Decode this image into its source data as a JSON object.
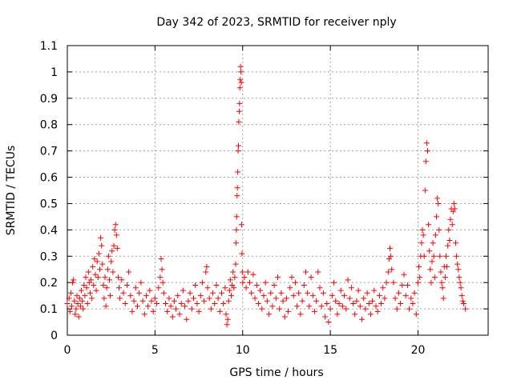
{
  "chart_data": {
    "type": "scatter",
    "title": "Day 342 of 2023, SRMTID for receiver nply",
    "xlabel": "GPS time / hours",
    "ylabel": "SRMTID / TECUs",
    "xlim": [
      0,
      24
    ],
    "ylim": [
      0,
      1.1
    ],
    "xticks": [
      0,
      5,
      10,
      15,
      20
    ],
    "xtick_labels": [
      "0",
      "5",
      "10",
      "15",
      "20"
    ],
    "yticks": [
      0,
      0.1,
      0.2,
      0.3,
      0.4,
      0.5,
      0.6,
      0.7,
      0.8,
      0.9,
      1,
      1.1
    ],
    "ytick_labels": [
      "0",
      "0.1",
      "0.2",
      "0.3",
      "0.4",
      "0.5",
      "0.6",
      "0.7",
      "0.8",
      "0.9",
      "1",
      "1.1"
    ],
    "grid": true,
    "marker": "+",
    "color": "#ff0000",
    "series": [
      {
        "name": "nply",
        "points": [
          [
            0.0,
            0.12
          ],
          [
            0.1,
            0.14
          ],
          [
            0.15,
            0.09
          ],
          [
            0.2,
            0.16
          ],
          [
            0.25,
            0.11
          ],
          [
            0.3,
            0.2
          ],
          [
            0.35,
            0.21
          ],
          [
            0.4,
            0.13
          ],
          [
            0.45,
            0.08
          ],
          [
            0.5,
            0.1
          ],
          [
            0.55,
            0.15
          ],
          [
            0.6,
            0.12
          ],
          [
            0.65,
            0.07
          ],
          [
            0.7,
            0.14
          ],
          [
            0.75,
            0.11
          ],
          [
            0.8,
            0.17
          ],
          [
            0.85,
            0.13
          ],
          [
            0.9,
            0.1
          ],
          [
            0.95,
            0.19
          ],
          [
            1.0,
            0.15
          ],
          [
            1.05,
            0.22
          ],
          [
            1.1,
            0.18
          ],
          [
            1.15,
            0.12
          ],
          [
            1.2,
            0.24
          ],
          [
            1.25,
            0.2
          ],
          [
            1.3,
            0.16
          ],
          [
            1.35,
            0.21
          ],
          [
            1.4,
            0.14
          ],
          [
            1.45,
            0.26
          ],
          [
            1.5,
            0.19
          ],
          [
            1.55,
            0.29
          ],
          [
            1.6,
            0.23
          ],
          [
            1.65,
            0.17
          ],
          [
            1.7,
            0.28
          ],
          [
            1.75,
            0.22
          ],
          [
            1.8,
            0.31
          ],
          [
            1.85,
            0.25
          ],
          [
            1.9,
            0.37
          ],
          [
            1.95,
            0.34
          ],
          [
            2.0,
            0.27
          ],
          [
            2.05,
            0.19
          ],
          [
            2.1,
            0.14
          ],
          [
            2.15,
            0.22
          ],
          [
            2.2,
            0.11
          ],
          [
            2.25,
            0.18
          ],
          [
            2.3,
            0.25
          ],
          [
            2.35,
            0.3
          ],
          [
            2.4,
            0.21
          ],
          [
            2.45,
            0.15
          ],
          [
            2.5,
            0.28
          ],
          [
            2.55,
            0.32
          ],
          [
            2.6,
            0.24
          ],
          [
            2.65,
            0.34
          ],
          [
            2.7,
            0.4
          ],
          [
            2.75,
            0.42
          ],
          [
            2.8,
            0.38
          ],
          [
            2.85,
            0.33
          ],
          [
            2.9,
            0.22
          ],
          [
            2.95,
            0.18
          ],
          [
            3.0,
            0.14
          ],
          [
            3.1,
            0.21
          ],
          [
            3.2,
            0.16
          ],
          [
            3.3,
            0.12
          ],
          [
            3.4,
            0.19
          ],
          [
            3.5,
            0.24
          ],
          [
            3.6,
            0.15
          ],
          [
            3.7,
            0.09
          ],
          [
            3.8,
            0.13
          ],
          [
            3.9,
            0.18
          ],
          [
            4.0,
            0.11
          ],
          [
            4.1,
            0.16
          ],
          [
            4.2,
            0.2
          ],
          [
            4.3,
            0.13
          ],
          [
            4.4,
            0.08
          ],
          [
            4.5,
            0.15
          ],
          [
            4.6,
            0.11
          ],
          [
            4.7,
            0.17
          ],
          [
            4.8,
            0.13
          ],
          [
            4.9,
            0.09
          ],
          [
            5.0,
            0.14
          ],
          [
            5.1,
            0.12
          ],
          [
            5.2,
            0.18
          ],
          [
            5.3,
            0.22
          ],
          [
            5.35,
            0.29
          ],
          [
            5.4,
            0.25
          ],
          [
            5.45,
            0.2
          ],
          [
            5.5,
            0.16
          ],
          [
            5.6,
            0.12
          ],
          [
            5.7,
            0.09
          ],
          [
            5.8,
            0.14
          ],
          [
            5.9,
            0.11
          ],
          [
            6.0,
            0.07
          ],
          [
            6.1,
            0.13
          ],
          [
            6.2,
            0.1
          ],
          [
            6.3,
            0.15
          ],
          [
            6.4,
            0.08
          ],
          [
            6.5,
            0.12
          ],
          [
            6.6,
            0.17
          ],
          [
            6.7,
            0.11
          ],
          [
            6.8,
            0.06
          ],
          [
            6.9,
            0.13
          ],
          [
            7.0,
            0.16
          ],
          [
            7.1,
            0.1
          ],
          [
            7.2,
            0.14
          ],
          [
            7.3,
            0.19
          ],
          [
            7.4,
            0.12
          ],
          [
            7.5,
            0.09
          ],
          [
            7.6,
            0.15
          ],
          [
            7.7,
            0.2
          ],
          [
            7.8,
            0.13
          ],
          [
            7.9,
            0.24
          ],
          [
            7.95,
            0.26
          ],
          [
            8.0,
            0.18
          ],
          [
            8.1,
            0.14
          ],
          [
            8.2,
            0.1
          ],
          [
            8.3,
            0.16
          ],
          [
            8.4,
            0.12
          ],
          [
            8.5,
            0.19
          ],
          [
            8.6,
            0.14
          ],
          [
            8.7,
            0.09
          ],
          [
            8.8,
            0.16
          ],
          [
            8.9,
            0.12
          ],
          [
            9.0,
            0.18
          ],
          [
            9.05,
            0.08
          ],
          [
            9.1,
            0.04
          ],
          [
            9.15,
            0.06
          ],
          [
            9.2,
            0.13
          ],
          [
            9.25,
            0.17
          ],
          [
            9.3,
            0.21
          ],
          [
            9.35,
            0.15
          ],
          [
            9.4,
            0.19
          ],
          [
            9.45,
            0.24
          ],
          [
            9.5,
            0.18
          ],
          [
            9.55,
            0.22
          ],
          [
            9.6,
            0.27
          ],
          [
            9.62,
            0.35
          ],
          [
            9.64,
            0.4
          ],
          [
            9.66,
            0.45
          ],
          [
            9.68,
            0.53
          ],
          [
            9.7,
            0.56
          ],
          [
            9.72,
            0.62
          ],
          [
            9.74,
            0.7
          ],
          [
            9.76,
            0.72
          ],
          [
            9.78,
            0.81
          ],
          [
            9.8,
            0.85
          ],
          [
            9.82,
            0.88
          ],
          [
            9.84,
            0.94
          ],
          [
            9.86,
            0.97
          ],
          [
            9.88,
            1.02
          ],
          [
            9.9,
            1.0
          ],
          [
            9.92,
            0.96
          ],
          [
            9.94,
            0.42
          ],
          [
            9.96,
            0.31
          ],
          [
            9.98,
            0.24
          ],
          [
            10.0,
            0.2
          ],
          [
            10.1,
            0.22
          ],
          [
            10.2,
            0.18
          ],
          [
            10.3,
            0.24
          ],
          [
            10.4,
            0.2
          ],
          [
            10.5,
            0.16
          ],
          [
            10.6,
            0.23
          ],
          [
            10.7,
            0.14
          ],
          [
            10.8,
            0.19
          ],
          [
            10.9,
            0.12
          ],
          [
            11.0,
            0.17
          ],
          [
            11.1,
            0.1
          ],
          [
            11.2,
            0.15
          ],
          [
            11.3,
            0.2
          ],
          [
            11.4,
            0.13
          ],
          [
            11.5,
            0.08
          ],
          [
            11.6,
            0.16
          ],
          [
            11.7,
            0.11
          ],
          [
            11.8,
            0.19
          ],
          [
            11.9,
            0.14
          ],
          [
            12.0,
            0.22
          ],
          [
            12.1,
            0.1
          ],
          [
            12.2,
            0.16
          ],
          [
            12.3,
            0.13
          ],
          [
            12.4,
            0.07
          ],
          [
            12.5,
            0.14
          ],
          [
            12.6,
            0.09
          ],
          [
            12.7,
            0.18
          ],
          [
            12.8,
            0.22
          ],
          [
            12.9,
            0.15
          ],
          [
            13.0,
            0.2
          ],
          [
            13.1,
            0.11
          ],
          [
            13.2,
            0.16
          ],
          [
            13.3,
            0.08
          ],
          [
            13.4,
            0.13
          ],
          [
            13.5,
            0.19
          ],
          [
            13.6,
            0.24
          ],
          [
            13.7,
            0.16
          ],
          [
            13.8,
            0.11
          ],
          [
            13.9,
            0.22
          ],
          [
            14.0,
            0.15
          ],
          [
            14.1,
            0.09
          ],
          [
            14.2,
            0.13
          ],
          [
            14.3,
            0.24
          ],
          [
            14.4,
            0.18
          ],
          [
            14.5,
            0.11
          ],
          [
            14.6,
            0.16
          ],
          [
            14.7,
            0.07
          ],
          [
            14.8,
            0.12
          ],
          [
            14.9,
            0.05
          ],
          [
            15.0,
            0.1
          ],
          [
            15.1,
            0.15
          ],
          [
            15.2,
            0.2
          ],
          [
            15.3,
            0.13
          ],
          [
            15.4,
            0.08
          ],
          [
            15.5,
            0.12
          ],
          [
            15.6,
            0.17
          ],
          [
            15.7,
            0.11
          ],
          [
            15.8,
            0.15
          ],
          [
            15.9,
            0.1
          ],
          [
            16.0,
            0.21
          ],
          [
            16.1,
            0.14
          ],
          [
            16.2,
            0.18
          ],
          [
            16.3,
            0.12
          ],
          [
            16.4,
            0.08
          ],
          [
            16.5,
            0.13
          ],
          [
            16.6,
            0.17
          ],
          [
            16.7,
            0.11
          ],
          [
            16.8,
            0.06
          ],
          [
            16.9,
            0.14
          ],
          [
            17.0,
            0.1
          ],
          [
            17.1,
            0.16
          ],
          [
            17.2,
            0.12
          ],
          [
            17.3,
            0.08
          ],
          [
            17.4,
            0.13
          ],
          [
            17.5,
            0.17
          ],
          [
            17.6,
            0.11
          ],
          [
            17.7,
            0.09
          ],
          [
            17.8,
            0.15
          ],
          [
            17.9,
            0.12
          ],
          [
            18.0,
            0.18
          ],
          [
            18.1,
            0.14
          ],
          [
            18.2,
            0.2
          ],
          [
            18.3,
            0.24
          ],
          [
            18.35,
            0.29
          ],
          [
            18.4,
            0.33
          ],
          [
            18.45,
            0.3
          ],
          [
            18.5,
            0.25
          ],
          [
            18.6,
            0.2
          ],
          [
            18.7,
            0.14
          ],
          [
            18.8,
            0.1
          ],
          [
            18.9,
            0.16
          ],
          [
            19.0,
            0.12
          ],
          [
            19.1,
            0.19
          ],
          [
            19.2,
            0.23
          ],
          [
            19.3,
            0.15
          ],
          [
            19.4,
            0.19
          ],
          [
            19.5,
            0.1
          ],
          [
            19.6,
            0.14
          ],
          [
            19.7,
            0.12
          ],
          [
            19.8,
            0.16
          ],
          [
            19.9,
            0.08
          ],
          [
            20.0,
            0.2
          ],
          [
            20.05,
            0.26
          ],
          [
            20.1,
            0.22
          ],
          [
            20.15,
            0.3
          ],
          [
            20.2,
            0.35
          ],
          [
            20.25,
            0.4
          ],
          [
            20.3,
            0.38
          ],
          [
            20.35,
            0.3
          ],
          [
            20.4,
            0.55
          ],
          [
            20.45,
            0.66
          ],
          [
            20.5,
            0.73
          ],
          [
            20.55,
            0.7
          ],
          [
            20.6,
            0.42
          ],
          [
            20.65,
            0.32
          ],
          [
            20.7,
            0.25
          ],
          [
            20.75,
            0.2
          ],
          [
            20.8,
            0.28
          ],
          [
            20.85,
            0.35
          ],
          [
            20.9,
            0.3
          ],
          [
            20.95,
            0.22
          ],
          [
            21.0,
            0.38
          ],
          [
            21.05,
            0.45
          ],
          [
            21.1,
            0.52
          ],
          [
            21.15,
            0.5
          ],
          [
            21.2,
            0.4
          ],
          [
            21.25,
            0.3
          ],
          [
            21.3,
            0.24
          ],
          [
            21.35,
            0.2
          ],
          [
            21.4,
            0.18
          ],
          [
            21.45,
            0.14
          ],
          [
            21.5,
            0.26
          ],
          [
            21.55,
            0.22
          ],
          [
            21.6,
            0.3
          ],
          [
            21.65,
            0.26
          ],
          [
            21.7,
            0.34
          ],
          [
            21.75,
            0.4
          ],
          [
            21.8,
            0.36
          ],
          [
            21.85,
            0.44
          ],
          [
            21.9,
            0.48
          ],
          [
            21.95,
            0.42
          ],
          [
            22.0,
            0.47
          ],
          [
            22.05,
            0.5
          ],
          [
            22.1,
            0.48
          ],
          [
            22.15,
            0.35
          ],
          [
            22.2,
            0.3
          ],
          [
            22.25,
            0.27
          ],
          [
            22.3,
            0.25
          ],
          [
            22.35,
            0.22
          ],
          [
            22.4,
            0.2
          ],
          [
            22.45,
            0.18
          ],
          [
            22.5,
            0.15
          ],
          [
            22.55,
            0.13
          ],
          [
            22.6,
            0.12
          ],
          [
            22.7,
            0.1
          ]
        ]
      }
    ]
  }
}
